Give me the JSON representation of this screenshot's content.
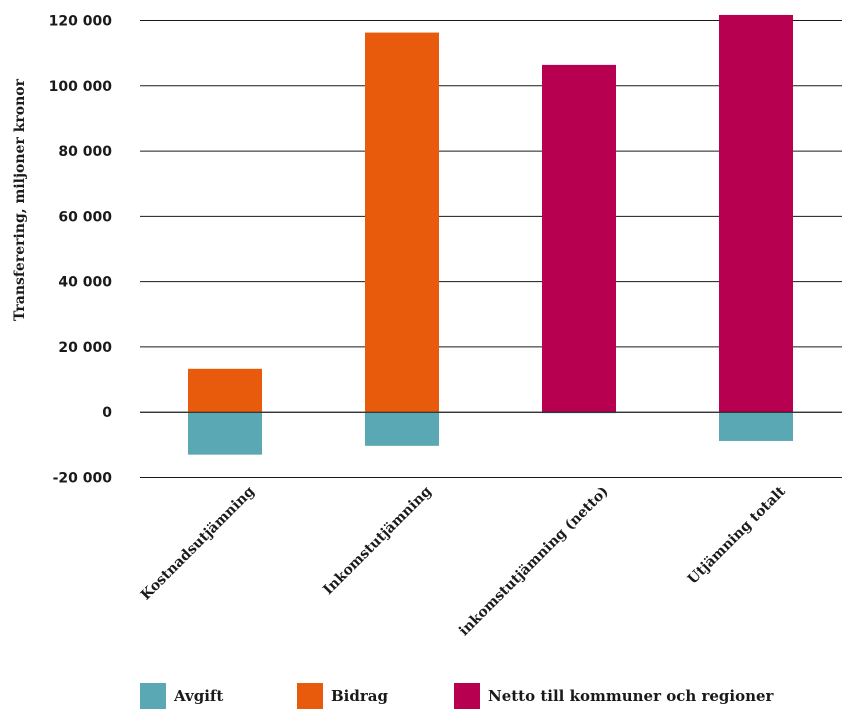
{
  "chart_data": {
    "type": "bar",
    "stacked": true,
    "ylabel": "Transferering, miljoner kronor",
    "xlabel": "",
    "ylim": [
      -20000,
      120000
    ],
    "yticks": [
      -20000,
      0,
      20000,
      40000,
      60000,
      80000,
      100000,
      120000
    ],
    "ytick_labels": [
      "-20 000",
      "0",
      "20 000",
      "40 000",
      "60 000",
      "80 000",
      "100 000",
      "120 000"
    ],
    "grid": true,
    "categories": [
      "Kostnadsutjämning",
      "Inkomstutjämning",
      "inkomstutjämning (netto)",
      "Utjämning totalt"
    ],
    "series": [
      {
        "name": "Avgift",
        "color": "#5aa8b3",
        "values": [
          -13000,
          -10300,
          -300,
          -8800
        ]
      },
      {
        "name": "Bidrag",
        "color": "#e85a0c",
        "values": [
          13300,
          116300,
          0,
          0
        ]
      },
      {
        "name": "Netto till kommuner och regioner",
        "color": "#b7004f",
        "values": [
          0,
          0,
          106400,
          121700
        ]
      }
    ],
    "legend_position": "bottom"
  }
}
